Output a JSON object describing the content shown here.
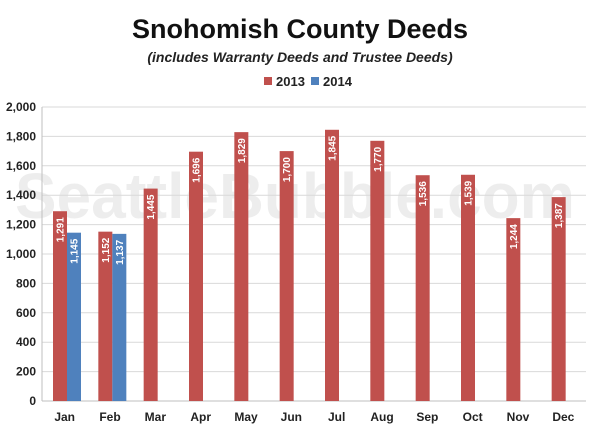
{
  "chart_data": {
    "type": "bar",
    "title": "Snohomish County Deeds",
    "subtitle": "(includes Warranty Deeds and Trustee Deeds)",
    "watermark": "SeattleBubble.com",
    "categories": [
      "Jan",
      "Feb",
      "Mar",
      "Apr",
      "May",
      "Jun",
      "Jul",
      "Aug",
      "Sep",
      "Oct",
      "Nov",
      "Dec"
    ],
    "series": [
      {
        "name": "2013",
        "color": "#c0504d",
        "values": [
          1291,
          1152,
          1445,
          1696,
          1829,
          1700,
          1845,
          1770,
          1536,
          1539,
          1244,
          1387
        ]
      },
      {
        "name": "2014",
        "color": "#4f81bd",
        "values": [
          1145,
          1137,
          null,
          null,
          null,
          null,
          null,
          null,
          null,
          null,
          null,
          null
        ]
      }
    ],
    "data_labels": {
      "2013": [
        "1,291",
        "1,152",
        "1,445",
        "1,696",
        "1,829",
        "1,700",
        "1,845",
        "1,770",
        "1,536",
        "1,539",
        "1,244",
        "1,387"
      ],
      "2014": [
        "1,145",
        "1,137"
      ]
    },
    "yticks": [
      "0",
      "200",
      "400",
      "600",
      "800",
      "1,000",
      "1,200",
      "1,400",
      "1,600",
      "1,800",
      "2,000"
    ],
    "ylim": [
      0,
      2000
    ],
    "grid": true,
    "legend_position": "top-center",
    "xlabel": "",
    "ylabel": ""
  }
}
